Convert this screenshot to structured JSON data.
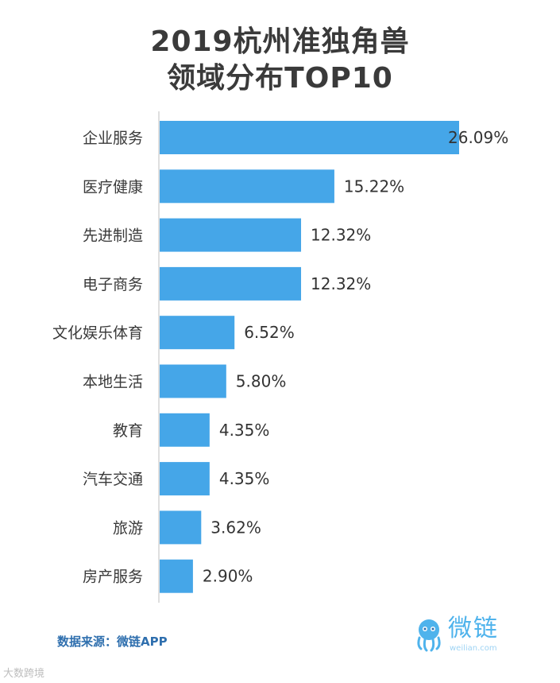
{
  "title_line1": "2019杭州准独角兽",
  "title_line2": "领域分布TOP10",
  "source": "数据来源：微链APP",
  "brand": {
    "name": "微链",
    "domain": "weilian.com"
  },
  "watermark": "大数跨境",
  "colors": {
    "bar": "#45a6e8",
    "axis": "#bfbfbf",
    "source": "#2f6fae"
  },
  "chart_data": {
    "type": "bar",
    "orientation": "horizontal",
    "categories": [
      "企业服务",
      "医疗健康",
      "先进制造",
      "电子商务",
      "文化娱乐体育",
      "本地生活",
      "教育",
      "汽车交通",
      "旅游",
      "房产服务"
    ],
    "values": [
      26.09,
      15.22,
      12.32,
      12.32,
      6.52,
      5.8,
      4.35,
      4.35,
      3.62,
      2.9
    ],
    "value_labels": [
      "26.09%",
      "15.22%",
      "12.32%",
      "12.32%",
      "6.52%",
      "5.80%",
      "4.35%",
      "4.35%",
      "3.62%",
      "2.90%"
    ],
    "title": "2019杭州准独角兽 领域分布TOP10",
    "xlabel": "",
    "ylabel": "",
    "xlim": [
      0,
      26.09
    ],
    "grid": false
  }
}
